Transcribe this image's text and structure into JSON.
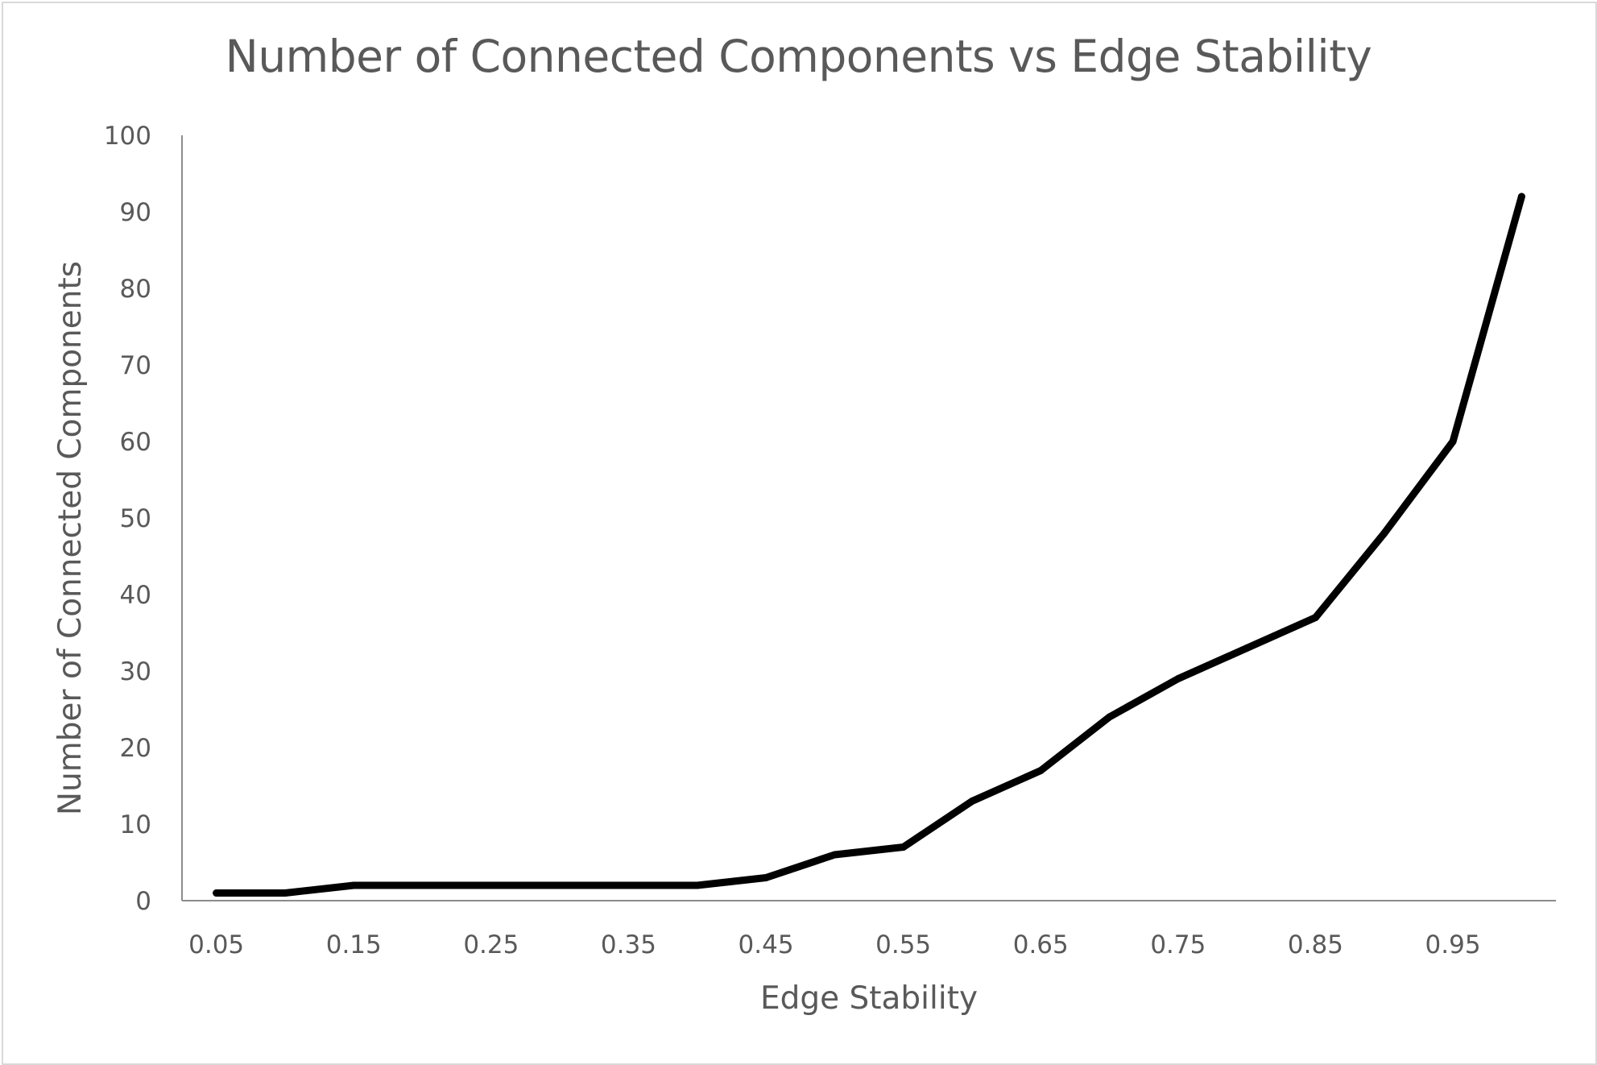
{
  "chart_data": {
    "type": "line",
    "title": "Number of Connected Components vs Edge Stability",
    "xlabel": "Edge Stability",
    "ylabel": "Number of Connected Components",
    "x": [
      0.05,
      0.1,
      0.15,
      0.2,
      0.25,
      0.3,
      0.35,
      0.4,
      0.45,
      0.5,
      0.55,
      0.6,
      0.65,
      0.7,
      0.75,
      0.8,
      0.85,
      0.9,
      0.95,
      1.0
    ],
    "series": [
      {
        "values": [
          1,
          1,
          2,
          2,
          2,
          2,
          2,
          2,
          3,
          6,
          7,
          13,
          17,
          24,
          29,
          33,
          37,
          48,
          60,
          92
        ],
        "color": "#000000"
      }
    ],
    "xticks": [
      "0.05",
      "0.15",
      "0.25",
      "0.35",
      "0.45",
      "0.55",
      "0.65",
      "0.75",
      "0.85",
      "0.95"
    ],
    "yticks": [
      "0",
      "10",
      "20",
      "30",
      "40",
      "50",
      "60",
      "70",
      "80",
      "90",
      "100"
    ],
    "ylim": [
      0,
      100
    ],
    "grid": false,
    "legend": "none",
    "colors": {
      "axis": "#8c8c8c",
      "text": "#595959",
      "frame": "#d9d9d9",
      "line": "#000000"
    }
  }
}
